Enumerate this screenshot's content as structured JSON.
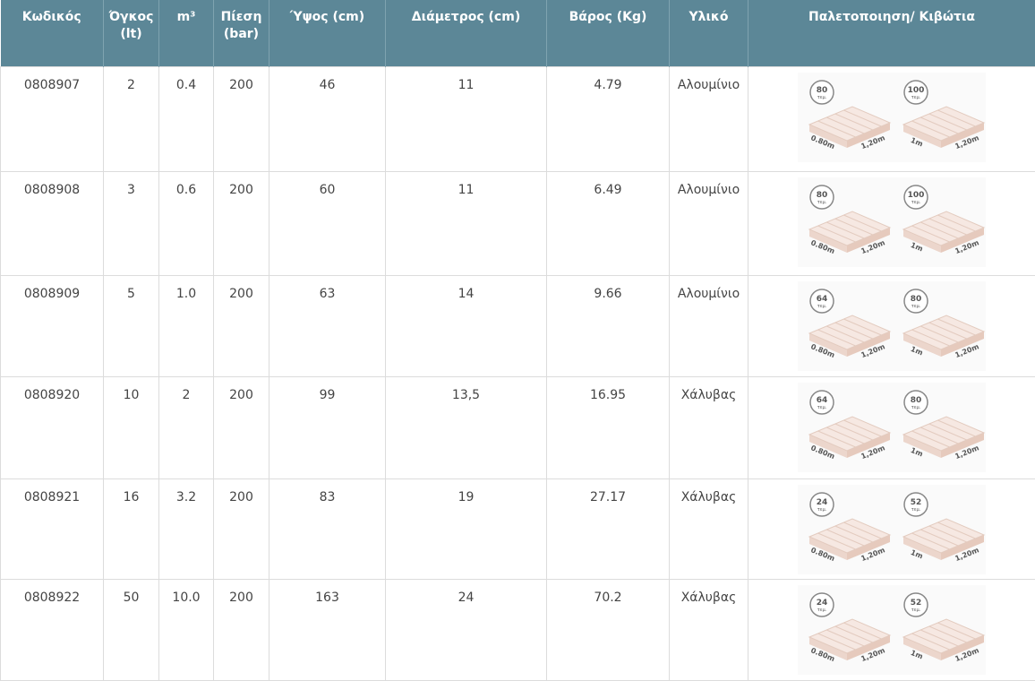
{
  "table": {
    "columns": [
      "Κωδικός",
      "Όγκος (lt)",
      "m³",
      "Πίεση (bar)",
      "Ύψος (cm)",
      "Διάμετρος (cm)",
      "Βάρος (Kg)",
      "Υλικό",
      "Παλετοποιηση/ Κιβώτια"
    ],
    "rows": [
      {
        "cells": [
          "0808907",
          "2",
          "0.4",
          "200",
          "46",
          "11",
          "4.79",
          "Αλουμίνιο"
        ],
        "pallets": [
          {
            "count": "80",
            "unit": "τεμ.",
            "width": "0.80m",
            "length": "1,20m"
          },
          {
            "count": "100",
            "unit": "τεμ.",
            "width": "1m",
            "length": "1,20m"
          }
        ]
      },
      {
        "cells": [
          "0808908",
          "3",
          "0.6",
          "200",
          "60",
          "11",
          "6.49",
          "Αλουμίνιο"
        ],
        "pallets": [
          {
            "count": "80",
            "unit": "τεμ.",
            "width": "0.80m",
            "length": "1,20m"
          },
          {
            "count": "100",
            "unit": "τεμ.",
            "width": "1m",
            "length": "1,20m"
          }
        ]
      },
      {
        "cells": [
          "0808909",
          "5",
          "1.0",
          "200",
          "63",
          "14",
          "9.66",
          "Αλουμίνιο"
        ],
        "pallets": [
          {
            "count": "64",
            "unit": "τεμ.",
            "width": "0.80m",
            "length": "1,20m"
          },
          {
            "count": "80",
            "unit": "τεμ.",
            "width": "1m",
            "length": "1,20m"
          }
        ]
      },
      {
        "cells": [
          "0808920",
          "10",
          "2",
          "200",
          "99",
          "13,5",
          "16.95",
          "Χάλυβας"
        ],
        "pallets": [
          {
            "count": "64",
            "unit": "τεμ.",
            "width": "0.80m",
            "length": "1,20m"
          },
          {
            "count": "80",
            "unit": "τεμ.",
            "width": "1m",
            "length": "1,20m"
          }
        ]
      },
      {
        "cells": [
          "0808921",
          "16",
          "3.2",
          "200",
          "83",
          "19",
          "27.17",
          "Χάλυβας"
        ],
        "pallets": [
          {
            "count": "24",
            "unit": "τεμ.",
            "width": "0.80m",
            "length": "1,20m"
          },
          {
            "count": "52",
            "unit": "τεμ.",
            "width": "1m",
            "length": "1,20m"
          }
        ]
      },
      {
        "cells": [
          "0808922",
          "50",
          "10.0",
          "200",
          "163",
          "24",
          "70.2",
          "Χάλυβας"
        ],
        "pallets": [
          {
            "count": "24",
            "unit": "τεμ.",
            "width": "0.80m",
            "length": "1,20m"
          },
          {
            "count": "52",
            "unit": "τεμ.",
            "width": "1m",
            "length": "1,20m"
          }
        ]
      }
    ]
  }
}
